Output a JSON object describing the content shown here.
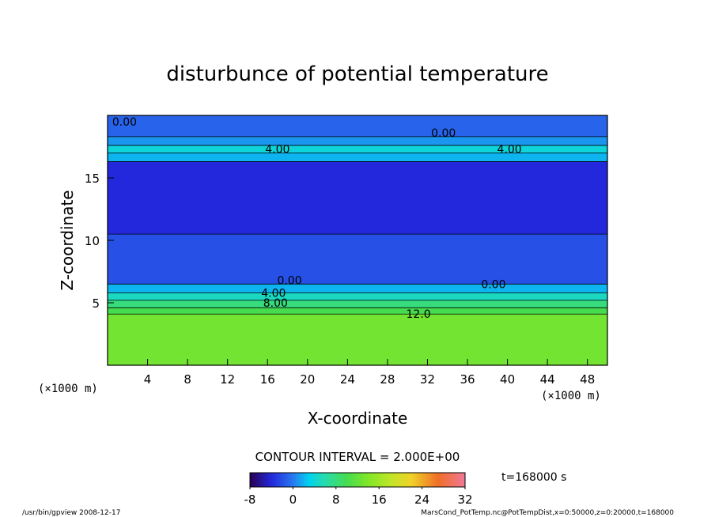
{
  "chart_data": {
    "type": "heatmap",
    "title": "disturbunce of potential temperature",
    "xlabel": "X-coordinate",
    "ylabel": "Z-coordinate",
    "x_unit": "(×1000 m)",
    "z_unit": "(×1000 m)",
    "xlim": [
      0,
      50
    ],
    "ylim": [
      0,
      20
    ],
    "x_ticks": [
      "4",
      "8",
      "12",
      "16",
      "20",
      "24",
      "28",
      "32",
      "36",
      "40",
      "44",
      "48"
    ],
    "y_ticks": [
      "5",
      "10",
      "15"
    ],
    "contour_interval": "CONTOUR INTERVAL = 2.000E+00",
    "colorbar": {
      "ticks": [
        "-8",
        "0",
        "8",
        "16",
        "24",
        "32"
      ],
      "min": -8,
      "max": 32
    },
    "contour_labels": [
      {
        "text": "0.00",
        "x": 1.7,
        "z": 19.5
      },
      {
        "text": "0.00",
        "x": 33.6,
        "z": 18.6
      },
      {
        "text": "4.00",
        "x": 17.0,
        "z": 17.3
      },
      {
        "text": "4.00",
        "x": 40.2,
        "z": 17.3
      },
      {
        "text": "0.00",
        "x": 18.2,
        "z": 6.8
      },
      {
        "text": "0.00",
        "x": 38.6,
        "z": 6.5
      },
      {
        "text": "4.00",
        "x": 16.6,
        "z": 5.8
      },
      {
        "text": "8.00",
        "x": 16.8,
        "z": 5.0
      },
      {
        "text": "12.0",
        "x": 31.1,
        "z": 4.1
      }
    ],
    "bands": [
      {
        "z": [
          0.0,
          4.1
        ],
        "value": 13
      },
      {
        "z": [
          4.1,
          4.6
        ],
        "value": 10
      },
      {
        "z": [
          4.6,
          5.2
        ],
        "value": 8
      },
      {
        "z": [
          5.2,
          5.8
        ],
        "value": 5
      },
      {
        "z": [
          5.8,
          6.5
        ],
        "value": 2
      },
      {
        "z": [
          6.5,
          10.5
        ],
        "value": -2
      },
      {
        "z": [
          10.5,
          16.3
        ],
        "value": -4
      },
      {
        "z": [
          16.3,
          17.0
        ],
        "value": 2
      },
      {
        "z": [
          17.0,
          17.6
        ],
        "value": 4
      },
      {
        "z": [
          17.6,
          18.3
        ],
        "value": 1
      },
      {
        "z": [
          18.3,
          20.0
        ],
        "value": -1
      }
    ],
    "time": "t=168000 s"
  },
  "footer": {
    "left": "/usr/bin/gpview   2008-12-17",
    "right": "MarsCond_PotTemp.nc@PotTempDist,x=0:50000,z=0:20000,t=168000"
  },
  "colors": {
    "background": "#ffffff",
    "axis": "#000000"
  }
}
